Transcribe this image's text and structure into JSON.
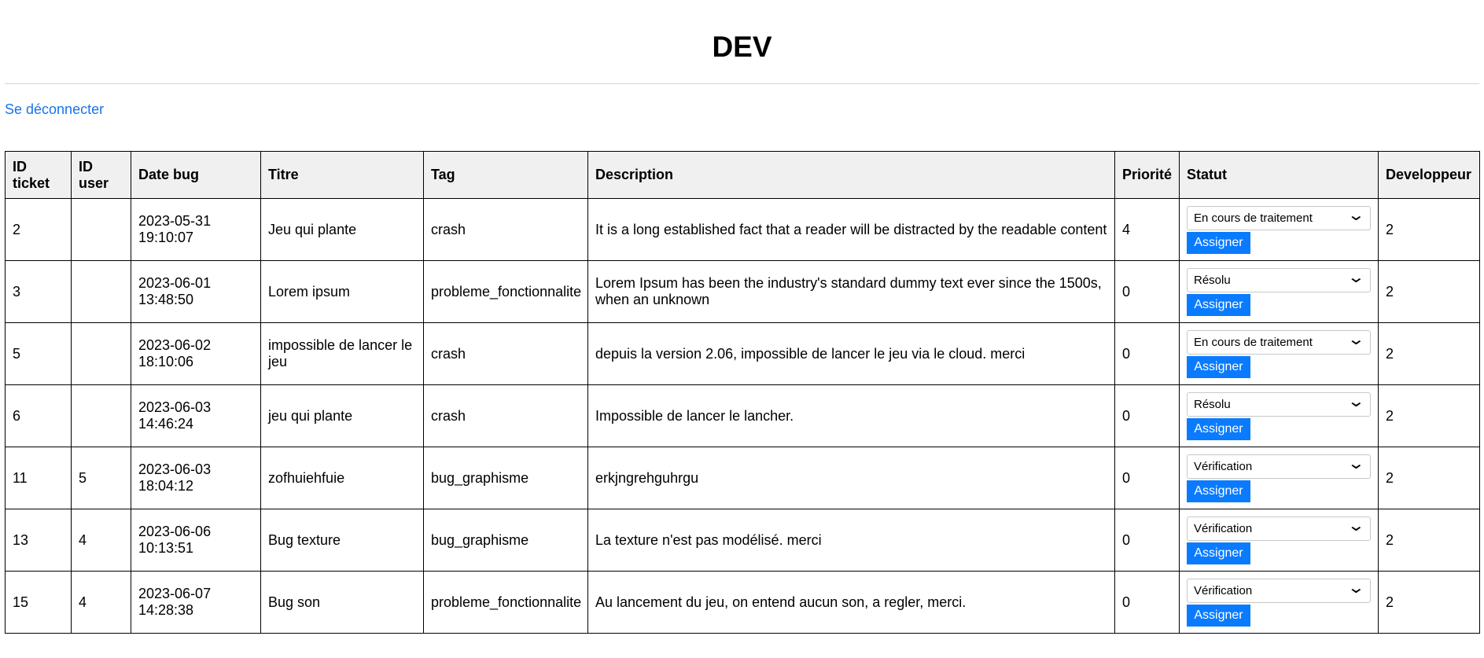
{
  "header": {
    "title": "DEV",
    "logout_label": "Se déconnecter"
  },
  "table": {
    "columns": [
      "ID ticket",
      "ID user",
      "Date bug",
      "Titre",
      "Tag",
      "Description",
      "Priorité",
      "Statut",
      "Developpeur"
    ],
    "rows": [
      {
        "id_ticket": "2",
        "id_user": "",
        "date": "2023-05-31 19:10:07",
        "titre": "Jeu qui plante",
        "tag": "crash",
        "description": "It is a long established fact that a reader will be distracted by the readable content",
        "priorite": "4",
        "statut": "En cours de traitement",
        "developpeur": "2"
      },
      {
        "id_ticket": "3",
        "id_user": "",
        "date": "2023-06-01 13:48:50",
        "titre": "Lorem ipsum",
        "tag": "probleme_fonctionnalite",
        "description": "Lorem Ipsum has been the industry's standard dummy text ever since the 1500s, when an unknown",
        "priorite": "0",
        "statut": "Résolu",
        "developpeur": "2"
      },
      {
        "id_ticket": "5",
        "id_user": "",
        "date": "2023-06-02 18:10:06",
        "titre": "impossible de lancer le jeu",
        "tag": "crash",
        "description": "depuis la version 2.06, impossible de lancer le jeu via le cloud. merci",
        "priorite": "0",
        "statut": "En cours de traitement",
        "developpeur": "2"
      },
      {
        "id_ticket": "6",
        "id_user": "",
        "date": "2023-06-03 14:46:24",
        "titre": "jeu qui plante",
        "tag": "crash",
        "description": "Impossible de lancer le lancher.",
        "priorite": "0",
        "statut": "Résolu",
        "developpeur": "2"
      },
      {
        "id_ticket": "11",
        "id_user": "5",
        "date": "2023-06-03 18:04:12",
        "titre": "zofhuiehfuie",
        "tag": "bug_graphisme",
        "description": "erkjngrehguhrgu",
        "priorite": "0",
        "statut": "Vérification",
        "developpeur": "2"
      },
      {
        "id_ticket": "13",
        "id_user": "4",
        "date": "2023-06-06 10:13:51",
        "titre": "Bug texture",
        "tag": "bug_graphisme",
        "description": "La texture n'est pas modélisé. merci",
        "priorite": "0",
        "statut": "Vérification",
        "developpeur": "2"
      },
      {
        "id_ticket": "15",
        "id_user": "4",
        "date": "2023-06-07 14:28:38",
        "titre": "Bug son",
        "tag": "probleme_fonctionnalite",
        "description": "Au lancement du jeu, on entend aucun son, a regler, merci.",
        "priorite": "0",
        "statut": "Vérification",
        "developpeur": "2"
      }
    ],
    "assign_label": "Assigner"
  },
  "colors": {
    "link": "#1a73e8",
    "button": "#0a7bff",
    "header_bg": "#f0f0f0"
  },
  "icons": {
    "select_arrow": "chevron-down-icon"
  }
}
